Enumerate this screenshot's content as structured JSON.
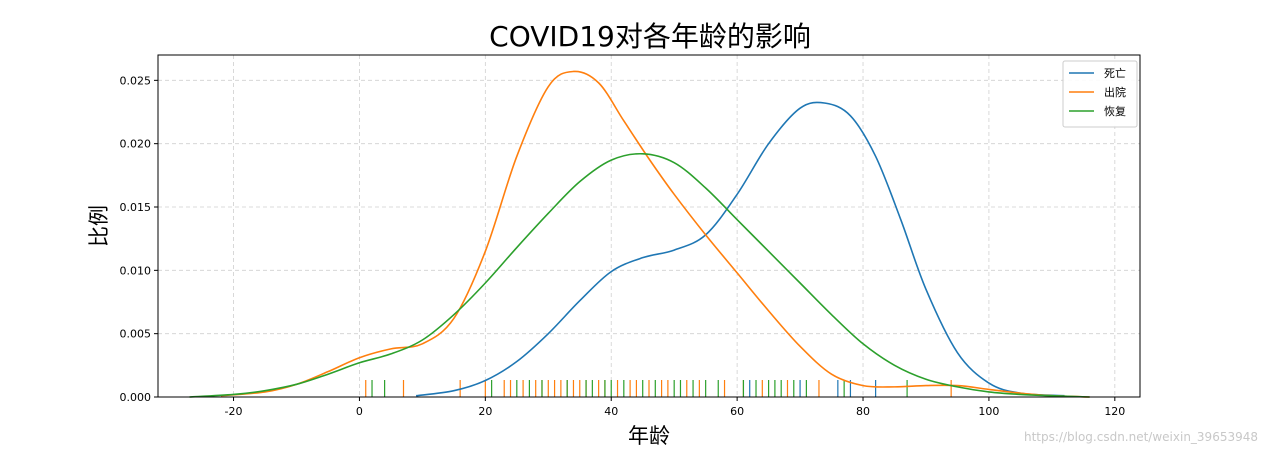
{
  "chart_data": {
    "type": "line",
    "title": "COVID19对各年龄的影响",
    "xlabel": "年龄",
    "ylabel": "比例",
    "xlim": [
      -32,
      124
    ],
    "ylim": [
      0,
      0.027
    ],
    "xticks": [
      -20,
      0,
      20,
      40,
      60,
      80,
      100,
      120
    ],
    "yticks": [
      0.0,
      0.005,
      0.01,
      0.015,
      0.02,
      0.025
    ],
    "ytick_labels": [
      "0.000",
      "0.005",
      "0.010",
      "0.015",
      "0.020",
      "0.025"
    ],
    "grid": true,
    "legend_position": "top-right",
    "series": [
      {
        "name": "死亡",
        "color": "#1f77b4",
        "x": [
          9,
          15,
          20,
          25,
          30,
          35,
          40,
          45,
          50,
          55,
          60,
          65,
          70,
          74,
          78,
          82,
          86,
          90,
          95,
          100,
          105,
          112
        ],
        "y": [
          0.0001,
          0.0005,
          0.0013,
          0.0028,
          0.005,
          0.0076,
          0.0099,
          0.011,
          0.0116,
          0.0128,
          0.016,
          0.02,
          0.0228,
          0.0232,
          0.0222,
          0.019,
          0.014,
          0.0085,
          0.0035,
          0.0011,
          0.0003,
          0.0001
        ],
        "rug": [
          62,
          70,
          76,
          78,
          82
        ]
      },
      {
        "name": "出院",
        "color": "#ff7f0e",
        "x": [
          -22,
          -15,
          -10,
          -5,
          0,
          5,
          10,
          15,
          20,
          25,
          30,
          34,
          38,
          42,
          46,
          50,
          55,
          60,
          65,
          70,
          75,
          80,
          85,
          90,
          95,
          100,
          105,
          110,
          116
        ],
        "y": [
          0.0001,
          0.0004,
          0.001,
          0.002,
          0.0031,
          0.0038,
          0.0042,
          0.0062,
          0.0115,
          0.019,
          0.0245,
          0.0257,
          0.0248,
          0.0218,
          0.0188,
          0.016,
          0.0128,
          0.0098,
          0.0068,
          0.004,
          0.0018,
          0.0009,
          0.0008,
          0.0009,
          0.0009,
          0.0006,
          0.0003,
          0.0001,
          0.0
        ],
        "rug": [
          1,
          7,
          16,
          20,
          23,
          24,
          26,
          28,
          29,
          30,
          31,
          32,
          33,
          34,
          35,
          36,
          38,
          39,
          41,
          43,
          44,
          46,
          48,
          49,
          52,
          54,
          58,
          61,
          64,
          68,
          73,
          94
        ]
      },
      {
        "name": "恢复",
        "color": "#2ca02c",
        "x": [
          -27,
          -20,
          -15,
          -10,
          -5,
          0,
          5,
          10,
          15,
          20,
          25,
          30,
          35,
          40,
          45,
          50,
          55,
          60,
          65,
          70,
          75,
          80,
          85,
          90,
          95,
          100,
          105,
          110,
          116
        ],
        "y": [
          0.0,
          0.0002,
          0.0005,
          0.001,
          0.0018,
          0.0027,
          0.0034,
          0.0045,
          0.0065,
          0.009,
          0.0118,
          0.0145,
          0.017,
          0.0187,
          0.0192,
          0.0185,
          0.0165,
          0.014,
          0.0115,
          0.009,
          0.0065,
          0.0042,
          0.0025,
          0.0014,
          0.0008,
          0.0004,
          0.0002,
          0.0001,
          0.0
        ],
        "rug": [
          2,
          4,
          21,
          25,
          27,
          29,
          33,
          36,
          37,
          39,
          40,
          42,
          45,
          47,
          50,
          51,
          53,
          55,
          57,
          61,
          63,
          65,
          66,
          67,
          69,
          71,
          77,
          87
        ]
      }
    ]
  },
  "watermark": "https://blog.csdn.net/weixin_39653948"
}
